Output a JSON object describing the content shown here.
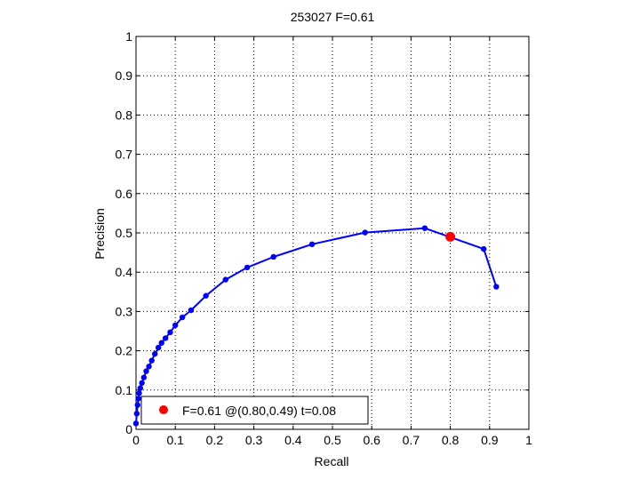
{
  "chart_data": {
    "type": "line",
    "title": "253027 F=0.61",
    "xlabel": "Recall",
    "ylabel": "Precision",
    "xlim": [
      0,
      1
    ],
    "ylim": [
      0,
      1
    ],
    "grid": true,
    "grid_style": "dotted",
    "x_ticks": [
      "0",
      "0.1",
      "0.2",
      "0.3",
      "0.4",
      "0.5",
      "0.6",
      "0.7",
      "0.8",
      "0.9",
      "1"
    ],
    "y_ticks": [
      "0",
      "0.1",
      "0.2",
      "0.3",
      "0.4",
      "0.5",
      "0.6",
      "0.7",
      "0.8",
      "0.9",
      "1"
    ],
    "legend_position": "bottom-left",
    "series": [
      {
        "color": "#0000ff",
        "x": [
          0.0,
          0.002,
          0.004,
          0.006,
          0.008,
          0.011,
          0.015,
          0.02,
          0.026,
          0.033,
          0.04,
          0.048,
          0.057,
          0.065,
          0.075,
          0.087,
          0.1,
          0.118,
          0.14,
          0.178,
          0.228,
          0.283,
          0.35,
          0.448,
          0.583,
          0.735,
          0.885,
          0.917
        ],
        "y": [
          0.015,
          0.04,
          0.062,
          0.078,
          0.092,
          0.105,
          0.118,
          0.132,
          0.148,
          0.16,
          0.175,
          0.192,
          0.208,
          0.22,
          0.232,
          0.247,
          0.265,
          0.285,
          0.303,
          0.34,
          0.381,
          0.412,
          0.439,
          0.471,
          0.501,
          0.512,
          0.459,
          0.363
        ]
      }
    ],
    "highlight": {
      "x": 0.8,
      "y": 0.49,
      "color": "#ff0000",
      "label": "F=0.61 @(0.80,0.49) t=0.08"
    }
  }
}
